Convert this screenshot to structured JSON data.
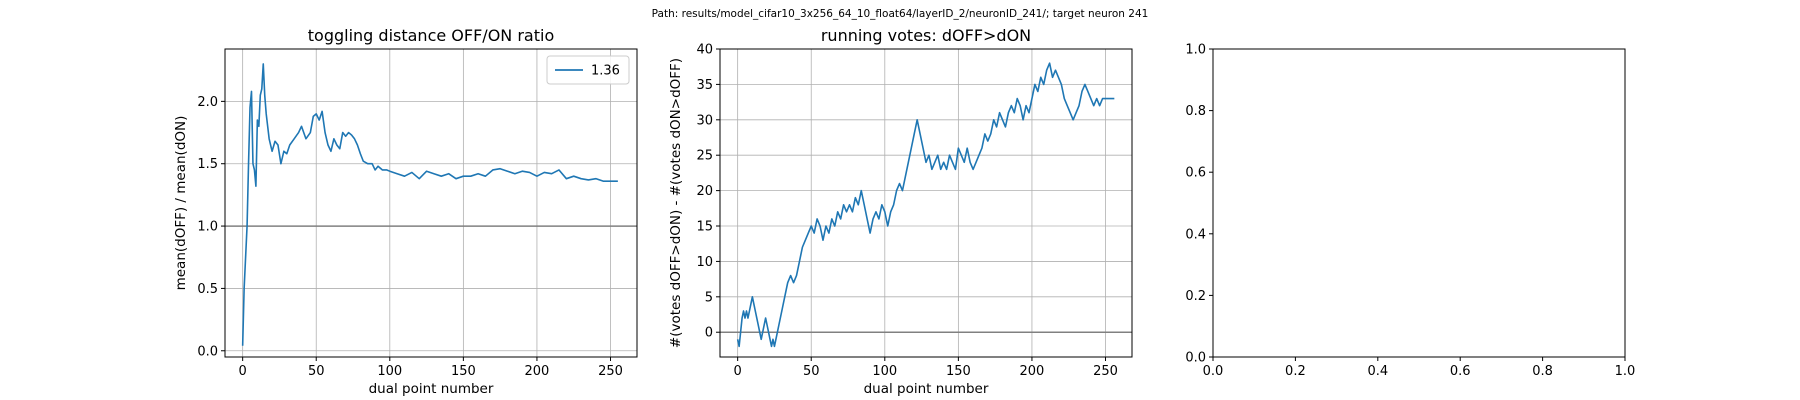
{
  "suptitle": "Path: results/model_cifar10_3x256_64_10_float64/layerID_2/neuronID_241/; target neuron 241",
  "colors": {
    "series": "#1f77b4",
    "hline": "#808080",
    "grid": "#b0b0b0"
  },
  "chart_data": [
    {
      "type": "line",
      "title": "toggling distance OFF/ON ratio",
      "xlabel": "dual point number",
      "ylabel": "mean(dOFF) / mean(dON)",
      "xlim": [
        -12,
        268
      ],
      "ylim": [
        -0.05,
        2.42
      ],
      "xticks": [
        0,
        50,
        100,
        150,
        200,
        250
      ],
      "xtick_labels": [
        "0",
        "50",
        "100",
        "150",
        "200",
        "250"
      ],
      "yticks": [
        0.0,
        0.5,
        1.0,
        1.5,
        2.0
      ],
      "ytick_labels": [
        "0.0",
        "0.5",
        "1.0",
        "1.5",
        "2.0"
      ],
      "grid": true,
      "legend": {
        "position": "upper right",
        "entries": [
          "1.36"
        ]
      },
      "hline": 1.0,
      "series": [
        {
          "name": "1.36",
          "x": [
            0,
            1,
            2,
            3,
            4,
            5,
            6,
            7,
            8,
            9,
            10,
            11,
            12,
            13,
            14,
            15,
            16,
            17,
            18,
            19,
            20,
            22,
            24,
            26,
            28,
            30,
            32,
            35,
            38,
            40,
            43,
            46,
            48,
            50,
            52,
            54,
            56,
            58,
            60,
            62,
            64,
            66,
            68,
            70,
            72,
            74,
            76,
            78,
            80,
            82,
            85,
            88,
            90,
            92,
            95,
            98,
            100,
            105,
            110,
            115,
            120,
            125,
            130,
            135,
            140,
            145,
            150,
            155,
            160,
            165,
            170,
            175,
            180,
            185,
            190,
            195,
            200,
            205,
            210,
            215,
            220,
            225,
            230,
            235,
            240,
            245,
            250,
            255
          ],
          "y": [
            0.04,
            0.5,
            0.75,
            1.0,
            1.5,
            1.95,
            2.08,
            1.5,
            1.45,
            1.32,
            1.85,
            1.8,
            2.05,
            2.1,
            2.3,
            2.05,
            1.9,
            1.8,
            1.7,
            1.65,
            1.6,
            1.68,
            1.65,
            1.5,
            1.6,
            1.58,
            1.65,
            1.7,
            1.75,
            1.8,
            1.7,
            1.75,
            1.88,
            1.9,
            1.85,
            1.92,
            1.75,
            1.65,
            1.6,
            1.7,
            1.65,
            1.62,
            1.75,
            1.72,
            1.75,
            1.73,
            1.7,
            1.65,
            1.58,
            1.52,
            1.5,
            1.5,
            1.45,
            1.48,
            1.45,
            1.45,
            1.44,
            1.42,
            1.4,
            1.43,
            1.38,
            1.44,
            1.42,
            1.4,
            1.42,
            1.38,
            1.4,
            1.4,
            1.42,
            1.4,
            1.45,
            1.46,
            1.44,
            1.42,
            1.44,
            1.43,
            1.4,
            1.43,
            1.42,
            1.45,
            1.38,
            1.4,
            1.38,
            1.37,
            1.38,
            1.36,
            1.36,
            1.36
          ]
        }
      ]
    },
    {
      "type": "line",
      "title": "running votes: dOFF>dON",
      "xlabel": "dual point number",
      "ylabel": "#(votes dOFF>dON) - #(votes dON>dOFF)",
      "xlim": [
        -12,
        268
      ],
      "ylim": [
        -3.5,
        40
      ],
      "xticks": [
        0,
        50,
        100,
        150,
        200,
        250
      ],
      "xtick_labels": [
        "0",
        "50",
        "100",
        "150",
        "200",
        "250"
      ],
      "yticks": [
        0,
        5,
        10,
        15,
        20,
        25,
        30,
        35,
        40
      ],
      "ytick_labels": [
        "0",
        "5",
        "10",
        "15",
        "20",
        "25",
        "30",
        "35",
        "40"
      ],
      "grid": true,
      "hline": 0,
      "series": [
        {
          "name": "",
          "x": [
            0,
            1,
            2,
            3,
            4,
            5,
            6,
            7,
            8,
            9,
            10,
            11,
            12,
            13,
            14,
            15,
            16,
            17,
            18,
            19,
            20,
            21,
            22,
            23,
            24,
            25,
            26,
            27,
            28,
            30,
            32,
            34,
            36,
            38,
            40,
            42,
            44,
            46,
            48,
            50,
            52,
            54,
            56,
            58,
            60,
            62,
            64,
            66,
            68,
            70,
            72,
            74,
            76,
            78,
            80,
            82,
            84,
            86,
            88,
            90,
            92,
            94,
            96,
            98,
            100,
            102,
            104,
            106,
            108,
            110,
            112,
            114,
            116,
            118,
            120,
            122,
            124,
            126,
            128,
            130,
            132,
            134,
            136,
            138,
            140,
            142,
            144,
            146,
            148,
            150,
            152,
            154,
            156,
            158,
            160,
            162,
            164,
            166,
            168,
            170,
            172,
            174,
            176,
            178,
            180,
            182,
            184,
            186,
            188,
            190,
            192,
            194,
            196,
            198,
            200,
            202,
            204,
            206,
            208,
            210,
            212,
            214,
            216,
            218,
            220,
            222,
            224,
            226,
            228,
            230,
            232,
            234,
            236,
            238,
            240,
            242,
            244,
            246,
            248,
            250,
            252,
            254,
            256
          ],
          "y": [
            -1,
            -2,
            0,
            2,
            3,
            2,
            3,
            2,
            3,
            4,
            5,
            4,
            3,
            2,
            1,
            0,
            -1,
            0,
            1,
            2,
            1,
            0,
            -1,
            -2,
            -1,
            -2,
            -1,
            0,
            1,
            3,
            5,
            7,
            8,
            7,
            8,
            10,
            12,
            13,
            14,
            15,
            14,
            16,
            15,
            13,
            15,
            14,
            16,
            15,
            17,
            16,
            18,
            17,
            18,
            17,
            19,
            18,
            20,
            18,
            16,
            14,
            16,
            17,
            16,
            18,
            17,
            15,
            17,
            18,
            20,
            21,
            20,
            22,
            24,
            26,
            28,
            30,
            28,
            26,
            24,
            25,
            23,
            24,
            25,
            23,
            24,
            23,
            25,
            24,
            23,
            26,
            25,
            24,
            26,
            24,
            23,
            24,
            25,
            26,
            28,
            27,
            28,
            30,
            29,
            31,
            30,
            29,
            31,
            32,
            31,
            33,
            32,
            30,
            32,
            31,
            33,
            35,
            34,
            36,
            35,
            37,
            38,
            36,
            37,
            36,
            35,
            33,
            32,
            31,
            30,
            31,
            32,
            34,
            35,
            34,
            33,
            32,
            33,
            32,
            33,
            33,
            33,
            33,
            33
          ]
        }
      ]
    },
    {
      "type": "line",
      "title": "",
      "xlabel": "",
      "ylabel": "",
      "xlim": [
        0,
        1
      ],
      "ylim": [
        0,
        1
      ],
      "xticks": [
        0,
        0.2,
        0.4,
        0.6,
        0.8,
        1.0
      ],
      "xtick_labels": [
        "0.0",
        "0.2",
        "0.4",
        "0.6",
        "0.8",
        "1.0"
      ],
      "yticks": [
        0,
        0.2,
        0.4,
        0.6,
        0.8,
        1.0
      ],
      "ytick_labels": [
        "0.0",
        "0.2",
        "0.4",
        "0.6",
        "0.8",
        "1.0"
      ],
      "grid": false,
      "series": []
    }
  ]
}
